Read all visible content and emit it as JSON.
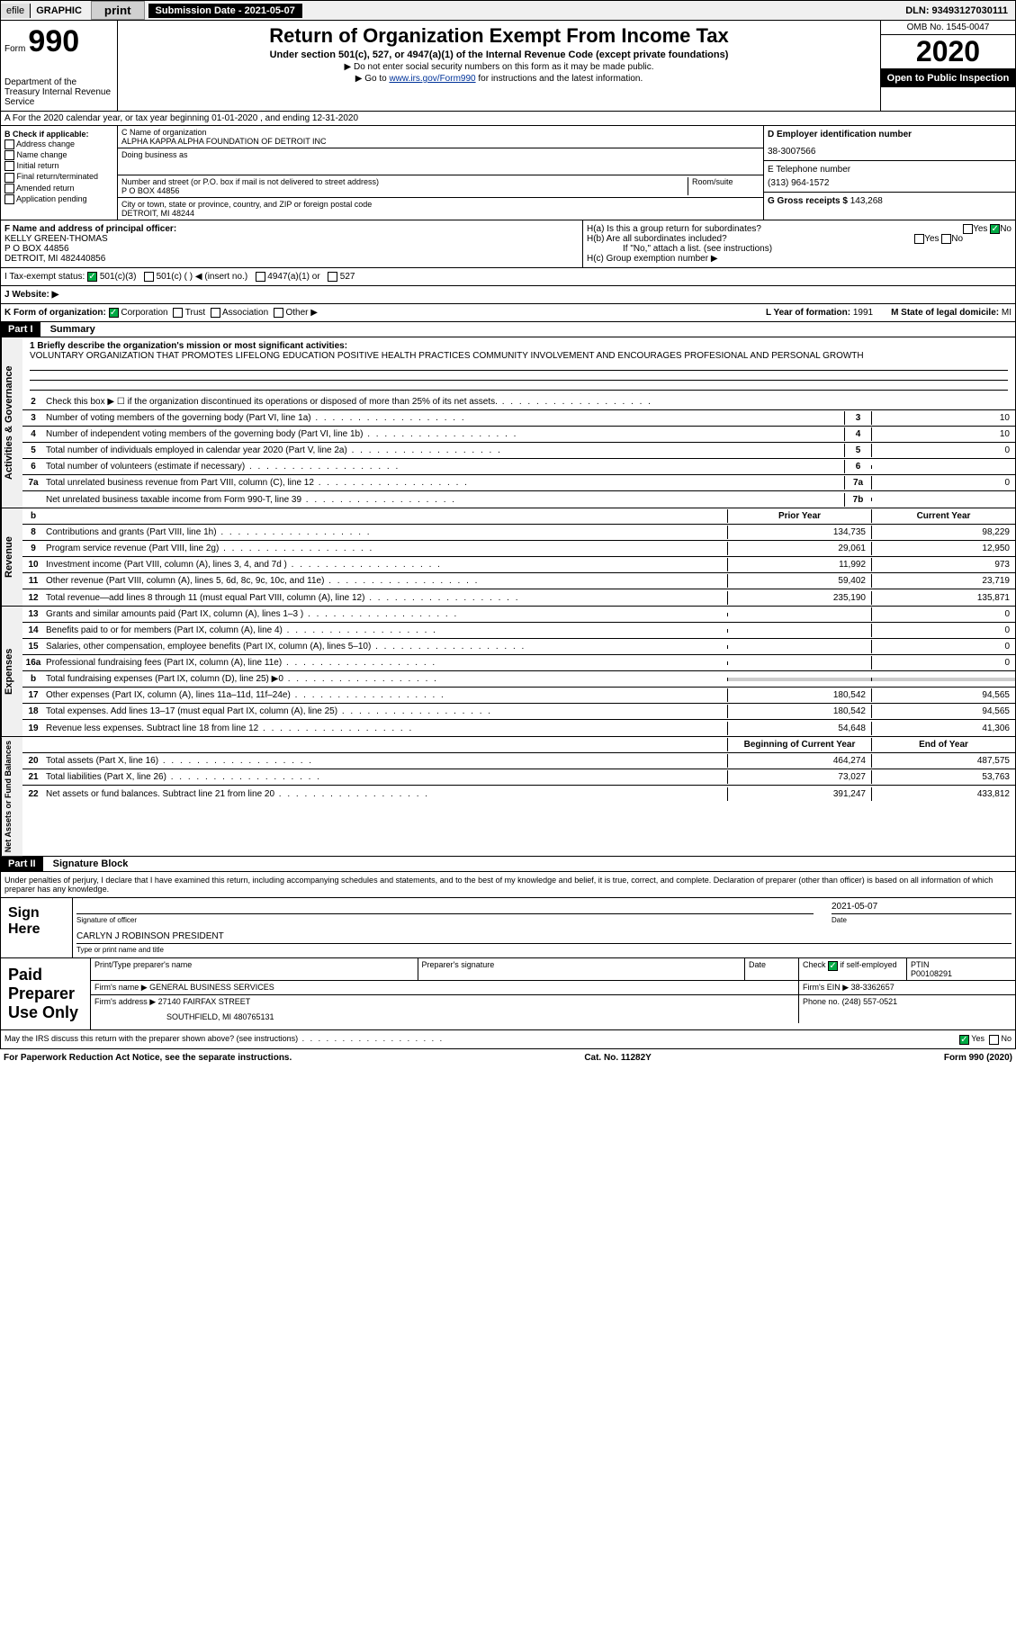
{
  "topbar": {
    "efile": "efile",
    "graphic": "GRAPHIC",
    "print": "print",
    "sub_date": "Submission Date - 2021-05-07",
    "dln": "DLN: 93493127030111"
  },
  "header": {
    "form": "Form",
    "form_num": "990",
    "dept": "Department of the Treasury Internal Revenue Service",
    "title": "Return of Organization Exempt From Income Tax",
    "subtitle": "Under section 501(c), 527, or 4947(a)(1) of the Internal Revenue Code (except private foundations)",
    "note1": "▶ Do not enter social security numbers on this form as it may be made public.",
    "note2_pre": "▶ Go to ",
    "note2_link": "www.irs.gov/Form990",
    "note2_post": " for instructions and the latest information.",
    "omb": "OMB No. 1545-0047",
    "year": "2020",
    "inspection": "Open to Public Inspection"
  },
  "tax_year": "A For the 2020 calendar year, or tax year beginning 01-01-2020    , and ending 12-31-2020",
  "section_b": {
    "check_label": "B Check if applicable:",
    "opts": [
      "Address change",
      "Name change",
      "Initial return",
      "Final return/terminated",
      "Amended return",
      "Application pending"
    ],
    "c_label": "C Name of organization",
    "org_name": "ALPHA KAPPA ALPHA FOUNDATION OF DETROIT INC",
    "dba_label": "Doing business as",
    "addr_label": "Number and street (or P.O. box if mail is not delivered to street address)",
    "room_label": "Room/suite",
    "addr": "P O BOX 44856",
    "city_label": "City or town, state or province, country, and ZIP or foreign postal code",
    "city": "DETROIT, MI  48244",
    "d_label": "D Employer identification number",
    "ein": "38-3007566",
    "e_label": "E Telephone number",
    "phone": "(313) 964-1572",
    "g_label": "G Gross receipts $",
    "gross": "143,268"
  },
  "officer": {
    "f_label": "F Name and address of principal officer:",
    "name": "KELLY GREEN-THOMAS",
    "addr1": "P O BOX 44856",
    "addr2": "DETROIT, MI  482440856",
    "ha": "H(a)  Is this a group return for subordinates?",
    "hb": "H(b)  Are all subordinates included?",
    "hb_note": "If \"No,\" attach a list. (see instructions)",
    "hc": "H(c)  Group exemption number ▶",
    "yes": "Yes",
    "no": "No"
  },
  "status": {
    "i_label": "I Tax-exempt status:",
    "opt1": "501(c)(3)",
    "opt2": "501(c) (   ) ◀ (insert no.)",
    "opt3": "4947(a)(1) or",
    "opt4": "527"
  },
  "website_label": "J Website: ▶",
  "korg": {
    "label": "K Form of organization:",
    "corp": "Corporation",
    "trust": "Trust",
    "assoc": "Association",
    "other": "Other ▶",
    "l_label": "L Year of formation:",
    "l_val": "1991",
    "m_label": "M State of legal domicile:",
    "m_val": "MI"
  },
  "part1": {
    "label": "Part I",
    "title": "Summary"
  },
  "mission": {
    "label": "1   Briefly describe the organization's mission or most significant activities:",
    "text": "VOLUNTARY ORGANIZATION THAT PROMOTES LIFELONG EDUCATION POSITIVE HEALTH PRACTICES COMMUNITY INVOLVEMENT AND ENCOURAGES PROFESIONAL AND PERSONAL GROWTH"
  },
  "activities": {
    "vtab": "Activities & Governance",
    "lines": [
      {
        "num": "2",
        "text": "Check this box ▶ ☐ if the organization discontinued its operations or disposed of more than 25% of its net assets."
      },
      {
        "num": "3",
        "text": "Number of voting members of the governing body (Part VI, line 1a)",
        "box": "3",
        "val": "10"
      },
      {
        "num": "4",
        "text": "Number of independent voting members of the governing body (Part VI, line 1b)",
        "box": "4",
        "val": "10"
      },
      {
        "num": "5",
        "text": "Total number of individuals employed in calendar year 2020 (Part V, line 2a)",
        "box": "5",
        "val": "0"
      },
      {
        "num": "6",
        "text": "Total number of volunteers (estimate if necessary)",
        "box": "6",
        "val": ""
      },
      {
        "num": "7a",
        "text": "Total unrelated business revenue from Part VIII, column (C), line 12",
        "box": "7a",
        "val": "0"
      },
      {
        "num": "",
        "text": "Net unrelated business taxable income from Form 990-T, line 39",
        "box": "7b",
        "val": ""
      }
    ]
  },
  "revenue": {
    "vtab": "Revenue",
    "col1": "Prior Year",
    "col2": "Current Year",
    "lines": [
      {
        "num": "8",
        "text": "Contributions and grants (Part VIII, line 1h)",
        "v1": "134,735",
        "v2": "98,229"
      },
      {
        "num": "9",
        "text": "Program service revenue (Part VIII, line 2g)",
        "v1": "29,061",
        "v2": "12,950"
      },
      {
        "num": "10",
        "text": "Investment income (Part VIII, column (A), lines 3, 4, and 7d )",
        "v1": "11,992",
        "v2": "973"
      },
      {
        "num": "11",
        "text": "Other revenue (Part VIII, column (A), lines 5, 6d, 8c, 9c, 10c, and 11e)",
        "v1": "59,402",
        "v2": "23,719"
      },
      {
        "num": "12",
        "text": "Total revenue—add lines 8 through 11 (must equal Part VIII, column (A), line 12)",
        "v1": "235,190",
        "v2": "135,871"
      }
    ]
  },
  "expenses": {
    "vtab": "Expenses",
    "lines": [
      {
        "num": "13",
        "text": "Grants and similar amounts paid (Part IX, column (A), lines 1–3 )",
        "v1": "",
        "v2": "0"
      },
      {
        "num": "14",
        "text": "Benefits paid to or for members (Part IX, column (A), line 4)",
        "v1": "",
        "v2": "0"
      },
      {
        "num": "15",
        "text": "Salaries, other compensation, employee benefits (Part IX, column (A), lines 5–10)",
        "v1": "",
        "v2": "0"
      },
      {
        "num": "16a",
        "text": "Professional fundraising fees (Part IX, column (A), line 11e)",
        "v1": "",
        "v2": "0"
      },
      {
        "num": "b",
        "text": "Total fundraising expenses (Part IX, column (D), line 25) ▶0",
        "v1": "gray",
        "v2": "gray"
      },
      {
        "num": "17",
        "text": "Other expenses (Part IX, column (A), lines 11a–11d, 11f–24e)",
        "v1": "180,542",
        "v2": "94,565"
      },
      {
        "num": "18",
        "text": "Total expenses. Add lines 13–17 (must equal Part IX, column (A), line 25)",
        "v1": "180,542",
        "v2": "94,565"
      },
      {
        "num": "19",
        "text": "Revenue less expenses. Subtract line 18 from line 12",
        "v1": "54,648",
        "v2": "41,306"
      }
    ]
  },
  "netassets": {
    "vtab": "Net Assets or Fund Balances",
    "col1": "Beginning of Current Year",
    "col2": "End of Year",
    "lines": [
      {
        "num": "20",
        "text": "Total assets (Part X, line 16)",
        "v1": "464,274",
        "v2": "487,575"
      },
      {
        "num": "21",
        "text": "Total liabilities (Part X, line 26)",
        "v1": "73,027",
        "v2": "53,763"
      },
      {
        "num": "22",
        "text": "Net assets or fund balances. Subtract line 21 from line 20",
        "v1": "391,247",
        "v2": "433,812"
      }
    ]
  },
  "part2": {
    "label": "Part II",
    "title": "Signature Block"
  },
  "sig": {
    "disclaimer": "Under penalties of perjury, I declare that I have examined this return, including accompanying schedules and statements, and to the best of my knowledge and belief, it is true, correct, and complete. Declaration of preparer (other than officer) is based on all information of which preparer has any knowledge.",
    "sign_here": "Sign Here",
    "sig_officer": "Signature of officer",
    "date_label": "Date",
    "date": "2021-05-07",
    "name": "CARLYN J ROBINSON PRESIDENT",
    "type_label": "Type or print name and title"
  },
  "preparer": {
    "label": "Paid Preparer Use Only",
    "print_label": "Print/Type preparer's name",
    "sig_label": "Preparer's signature",
    "date_label": "Date",
    "check_label": "Check",
    "if_self": "if self-employed",
    "ptin_label": "PTIN",
    "ptin": "P00108291",
    "firm_label": "Firm's name    ▶",
    "firm": "GENERAL BUSINESS SERVICES",
    "ein_label": "Firm's EIN ▶",
    "ein": "38-3362657",
    "addr_label": "Firm's address ▶",
    "addr1": "27140 FAIRFAX STREET",
    "addr2": "SOUTHFIELD, MI  480765131",
    "phone_label": "Phone no.",
    "phone": "(248) 557-0521"
  },
  "discuss": {
    "text": "May the IRS discuss this return with the preparer shown above? (see instructions)",
    "yes": "Yes",
    "no": "No"
  },
  "footer": {
    "left": "For Paperwork Reduction Act Notice, see the separate instructions.",
    "mid": "Cat. No. 11282Y",
    "right": "Form 990 (2020)"
  }
}
